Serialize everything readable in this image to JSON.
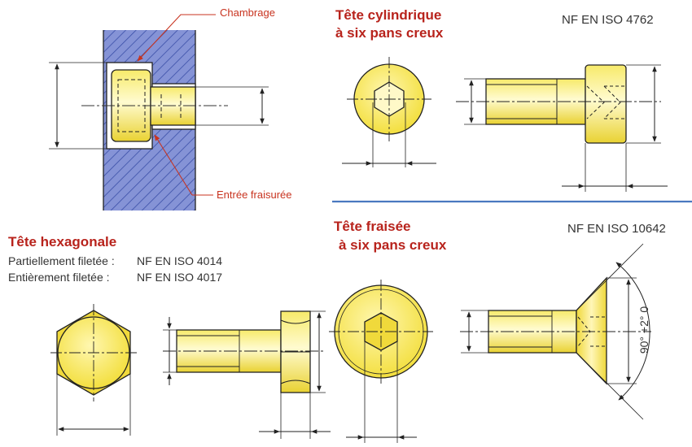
{
  "sections": {
    "counterbore": {
      "callout_top": "Chambrage",
      "callout_bottom": "Entrée fraisurée"
    },
    "cylindrical": {
      "title_line1": "Tête cylindrique",
      "title_line2": "à six pans creux",
      "standard": "NF EN ISO 4762"
    },
    "hexagonal": {
      "title": "Tête hexagonale",
      "rows": [
        {
          "label": "Partiellement filetée :",
          "standard": "NF EN ISO 4014"
        },
        {
          "label": "Entièrement filetée :",
          "standard": "NF EN ISO 4017"
        }
      ]
    },
    "countersunk": {
      "title_line1": "Tête fraisée",
      "title_line2": "à six pans creux",
      "standard": "NF EN ISO 10642",
      "angle_label": "90° +2° 0"
    }
  },
  "colors": {
    "title_red": "#b8231c",
    "callout_red": "#c8331f",
    "part_yellow": "#f3e24a",
    "material_blue": "#8593d6",
    "hatch_blue": "#3b4fa8",
    "divider_blue": "#4a78c0",
    "outline": "#222222"
  }
}
